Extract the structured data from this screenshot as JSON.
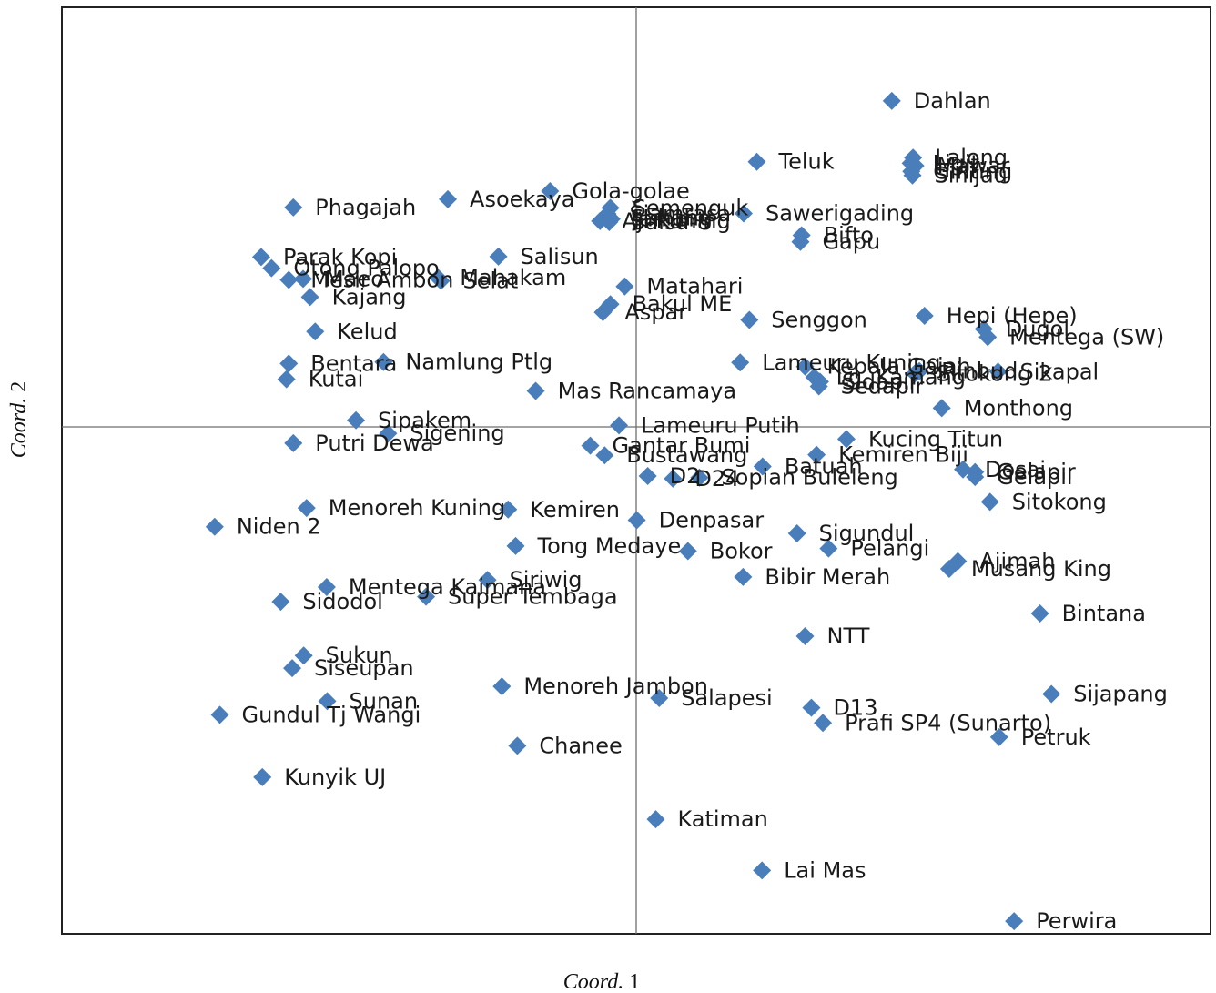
{
  "chart_data": {
    "type": "scatter",
    "title": "",
    "xlabel": "Coord. 1",
    "xlabel_italic": "Coord.",
    "xlabel_num": " 1",
    "ylabel": "Coord. 2",
    "ylabel_italic": "Coord.",
    "ylabel_num": " 2",
    "xlim": [
      -1.0,
      1.0
    ],
    "ylim": [
      -1.0,
      1.0
    ],
    "grid": false,
    "zero_lines": true,
    "marker": "diamond",
    "color": "#4A7EBB",
    "points": [
      {
        "label": "Dahlan",
        "x": 0.445,
        "y": 0.643
      },
      {
        "label": "Lalong",
        "x": 0.482,
        "y": 0.531
      },
      {
        "label": "Ligit",
        "x": 0.478,
        "y": 0.52
      },
      {
        "label": "Mawar",
        "x": 0.486,
        "y": 0.515
      },
      {
        "label": "Ginting",
        "x": 0.479,
        "y": 0.504
      },
      {
        "label": "Sihijau",
        "x": 0.481,
        "y": 0.496
      },
      {
        "label": "Teluk",
        "x": 0.21,
        "y": 0.523
      },
      {
        "label": "Phagajah",
        "x": -0.597,
        "y": 0.433
      },
      {
        "label": "Asoekaya",
        "x": -0.328,
        "y": 0.449
      },
      {
        "label": "Gola-golae",
        "x": -0.15,
        "y": 0.465
      },
      {
        "label": "Aji Kuning",
        "x": -0.063,
        "y": 0.406
      },
      {
        "label": "Semenguk",
        "x": -0.045,
        "y": 0.432
      },
      {
        "label": "Sawerigading",
        "x": 0.187,
        "y": 0.421
      },
      {
        "label": "Siamrasa",
        "x": -0.05,
        "y": 0.42
      },
      {
        "label": "Sahang",
        "x": -0.048,
        "y": 0.412
      },
      {
        "label": "Salsa-8",
        "x": -0.047,
        "y": 0.404
      },
      {
        "label": "Jambi",
        "x": -0.043,
        "y": 0.41
      },
      {
        "label": "Bifto",
        "x": 0.288,
        "y": 0.378
      },
      {
        "label": "Gapu",
        "x": 0.286,
        "y": 0.365
      },
      {
        "label": "Parak Kopi",
        "x": -0.653,
        "y": 0.335
      },
      {
        "label": "Otong Palopo",
        "x": -0.635,
        "y": 0.313
      },
      {
        "label": "Maeo",
        "x": -0.58,
        "y": 0.292
      },
      {
        "label": "Mahakam",
        "x": -0.345,
        "y": 0.294
      },
      {
        "label": "Salisun",
        "x": -0.24,
        "y": 0.336
      },
      {
        "label": "Matahari",
        "x": -0.02,
        "y": 0.277
      },
      {
        "label": "Selat",
        "x": -0.34,
        "y": 0.288
      },
      {
        "label": "Mesir Ambon",
        "x": -0.605,
        "y": 0.29
      },
      {
        "label": "Kajang",
        "x": -0.568,
        "y": 0.256
      },
      {
        "label": "Bakul ME",
        "x": -0.045,
        "y": 0.242
      },
      {
        "label": "Aspar",
        "x": -0.058,
        "y": 0.226
      },
      {
        "label": "Hepi (Hepe)",
        "x": 0.502,
        "y": 0.219
      },
      {
        "label": "Dugol",
        "x": 0.605,
        "y": 0.193
      },
      {
        "label": "Mentega (SW)",
        "x": 0.612,
        "y": 0.177
      },
      {
        "label": "Senggon",
        "x": 0.197,
        "y": 0.211
      },
      {
        "label": "Kelud",
        "x": -0.559,
        "y": 0.188
      },
      {
        "label": "Lameuru Kuning",
        "x": 0.181,
        "y": 0.127
      },
      {
        "label": "Kepala Gajah",
        "x": 0.294,
        "y": 0.119
      },
      {
        "label": "Lg. Kamang",
        "x": 0.31,
        "y": 0.098
      },
      {
        "label": "Sitokong 2",
        "x": 0.485,
        "y": 0.105
      },
      {
        "label": "Rinbud",
        "x": 0.493,
        "y": 0.11
      },
      {
        "label": "Sikapal",
        "x": 0.63,
        "y": 0.109
      },
      {
        "label": "Sidapir",
        "x": 0.32,
        "y": 0.089
      },
      {
        "label": "Sedapir",
        "x": 0.318,
        "y": 0.08
      },
      {
        "label": "Bentara",
        "x": -0.605,
        "y": 0.125
      },
      {
        "label": "Namlung Ptlg",
        "x": -0.44,
        "y": 0.128
      },
      {
        "label": "Kutai",
        "x": -0.609,
        "y": 0.094
      },
      {
        "label": "Mas Rancamaya",
        "x": -0.175,
        "y": 0.071
      },
      {
        "label": "Monthong",
        "x": 0.532,
        "y": 0.037
      },
      {
        "label": "Lameuru Putih",
        "x": -0.03,
        "y": 0.003
      },
      {
        "label": "Sipakem",
        "x": -0.488,
        "y": 0.013
      },
      {
        "label": "Sigening",
        "x": -0.432,
        "y": -0.013
      },
      {
        "label": "Putri Dewa",
        "x": -0.597,
        "y": -0.032
      },
      {
        "label": "Gantar Bumi",
        "x": -0.08,
        "y": -0.037
      },
      {
        "label": "Bustawang",
        "x": -0.055,
        "y": -0.056
      },
      {
        "label": "Kucing Titun",
        "x": 0.366,
        "y": -0.024
      },
      {
        "label": "Kemiren Biji",
        "x": 0.314,
        "y": -0.055
      },
      {
        "label": "Batuah",
        "x": 0.22,
        "y": -0.078
      },
      {
        "label": "D2",
        "x": 0.02,
        "y": -0.097
      },
      {
        "label": "D24",
        "x": 0.064,
        "y": -0.102
      },
      {
        "label": "Sopian Buleleng",
        "x": 0.11,
        "y": -0.1
      },
      {
        "label": "Dosai",
        "x": 0.569,
        "y": -0.084
      },
      {
        "label": "Gelapir",
        "x": 0.59,
        "y": -0.089
      },
      {
        "label": "Gelapil",
        "x": 0.59,
        "y": -0.099
      },
      {
        "label": "Sitokong",
        "x": 0.616,
        "y": -0.148
      },
      {
        "label": "Kemiren",
        "x": -0.223,
        "y": -0.163
      },
      {
        "label": "Menoreh Kuning",
        "x": -0.574,
        "y": -0.16
      },
      {
        "label": "Niden 2",
        "x": -0.734,
        "y": -0.197
      },
      {
        "label": "Denpasar",
        "x": 0.001,
        "y": -0.184
      },
      {
        "label": "Sigundul",
        "x": 0.28,
        "y": -0.21
      },
      {
        "label": "Tong Medaye",
        "x": -0.21,
        "y": -0.235
      },
      {
        "label": "Bokor",
        "x": 0.09,
        "y": -0.245
      },
      {
        "label": "Pelangi",
        "x": 0.335,
        "y": -0.24
      },
      {
        "label": "Ajimah",
        "x": 0.56,
        "y": -0.265
      },
      {
        "label": "Musang King",
        "x": 0.545,
        "y": -0.28
      },
      {
        "label": "Siriwig",
        "x": -0.259,
        "y": -0.302
      },
      {
        "label": "Mentega Kaimana",
        "x": -0.539,
        "y": -0.316
      },
      {
        "label": "Super Tembaga",
        "x": -0.366,
        "y": -0.335
      },
      {
        "label": "Sidodol",
        "x": -0.619,
        "y": -0.345
      },
      {
        "label": "Bibir Merah",
        "x": 0.186,
        "y": -0.296
      },
      {
        "label": "Bintana",
        "x": 0.703,
        "y": -0.368
      },
      {
        "label": "NTT",
        "x": 0.294,
        "y": -0.413
      },
      {
        "label": "Sukun",
        "x": -0.579,
        "y": -0.451
      },
      {
        "label": "Siseupan",
        "x": -0.599,
        "y": -0.476
      },
      {
        "label": "Menoreh Jambon",
        "x": -0.234,
        "y": -0.512
      },
      {
        "label": "Salapesi",
        "x": 0.04,
        "y": -0.535
      },
      {
        "label": "Sunan",
        "x": -0.538,
        "y": -0.541
      },
      {
        "label": "Gundul Tj Wangi",
        "x": -0.725,
        "y": -0.568
      },
      {
        "label": "D13",
        "x": 0.305,
        "y": -0.554
      },
      {
        "label": "Prafi SP4 (Sunarto)",
        "x": 0.325,
        "y": -0.584
      },
      {
        "label": "Sijapang",
        "x": 0.723,
        "y": -0.527
      },
      {
        "label": "Petruk",
        "x": 0.632,
        "y": -0.612
      },
      {
        "label": "Chanee",
        "x": -0.207,
        "y": -0.629
      },
      {
        "label": "Kunyik UJ",
        "x": -0.651,
        "y": -0.691
      },
      {
        "label": "Katiman",
        "x": 0.034,
        "y": -0.774
      },
      {
        "label": "Lai Mas",
        "x": 0.219,
        "y": -0.875
      },
      {
        "label": "Perwira",
        "x": 0.658,
        "y": -0.975
      }
    ]
  }
}
